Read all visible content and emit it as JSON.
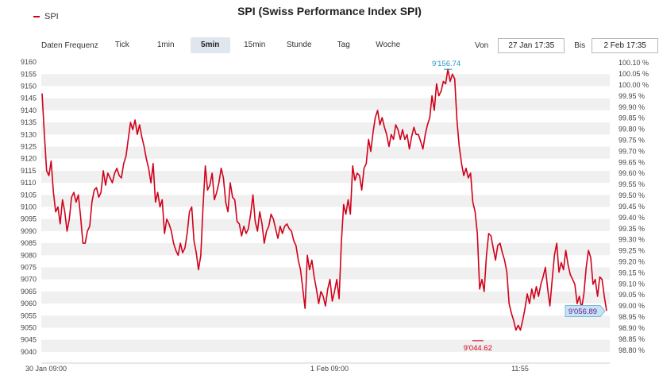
{
  "chart_data": {
    "type": "line",
    "title": "SPI (Swiss Performance Index SPI)",
    "series": [
      {
        "name": "SPI",
        "color": "#d0021b"
      }
    ],
    "x_ticks": [
      "30 Jan 09:00",
      "1 Feb 09:00",
      "11:55"
    ],
    "ylim": [
      9037,
      9162
    ],
    "y_ticks": [
      9040,
      9045,
      9050,
      9055,
      9060,
      9065,
      9070,
      9075,
      9080,
      9085,
      9090,
      9095,
      9100,
      9105,
      9110,
      9115,
      9120,
      9125,
      9130,
      9135,
      9140,
      9145,
      9150,
      9155,
      9160
    ],
    "y2_ticks": [
      "98.80 %",
      "98.85 %",
      "98.90 %",
      "98.95 %",
      "99.00 %",
      "99.05 %",
      "99.10 %",
      "99.15 %",
      "99.20 %",
      "99.25 %",
      "99.30 %",
      "99.35 %",
      "99.40 %",
      "99.45 %",
      "99.50 %",
      "99.55 %",
      "99.60 %",
      "99.65 %",
      "99.70 %",
      "99.75 %",
      "99.80 %",
      "99.85 %",
      "99.90 %",
      "99.95 %",
      "100.00 %",
      "100.05 %",
      "100.10 %"
    ],
    "y2_values": [
      98.8,
      98.85,
      98.9,
      98.95,
      99.0,
      99.05,
      99.1,
      99.15,
      99.2,
      99.25,
      99.3,
      99.35,
      99.4,
      99.45,
      99.5,
      99.55,
      99.6,
      99.65,
      99.7,
      99.75,
      99.8,
      99.85,
      99.9,
      99.95,
      100.0,
      100.05,
      100.1
    ],
    "y2_base": 9150.5,
    "grid": "horizontal-bands",
    "annotations": {
      "max_label": "9'156.74",
      "min_label": "9'044.62",
      "last_label": "9'056.89"
    },
    "values": [
      9147,
      9130,
      9115,
      9113,
      9119,
      9106,
      9098,
      9100,
      9093,
      9103,
      9098,
      9090,
      9095,
      9104,
      9106,
      9102,
      9105,
      9096,
      9085,
      9085,
      9090,
      9092,
      9102,
      9107,
      9108,
      9104,
      9106,
      9115,
      9109,
      9114,
      9112,
      9110,
      9114,
      9116,
      9113,
      9112,
      9118,
      9121,
      9128,
      9135,
      9132,
      9136,
      9130,
      9134,
      9129,
      9125,
      9120,
      9116,
      9110,
      9118,
      9102,
      9106,
      9100,
      9103,
      9089,
      9095,
      9093,
      9090,
      9085,
      9082,
      9080,
      9085,
      9081,
      9083,
      9089,
      9098,
      9100,
      9086,
      9081,
      9074,
      9080,
      9100,
      9117,
      9107,
      9109,
      9114,
      9103,
      9106,
      9110,
      9116,
      9112,
      9102,
      9098,
      9110,
      9104,
      9103,
      9094,
      9093,
      9088,
      9092,
      9089,
      9091,
      9097,
      9105,
      9094,
      9090,
      9098,
      9093,
      9085,
      9090,
      9092,
      9097,
      9095,
      9091,
      9087,
      9092,
      9089,
      9092,
      9093,
      9091,
      9090,
      9086,
      9084,
      9078,
      9074,
      9066,
      9058,
      9080,
      9074,
      9078,
      9071,
      9066,
      9060,
      9065,
      9063,
      9059,
      9066,
      9070,
      9061,
      9065,
      9070,
      9062,
      9085,
      9101,
      9097,
      9103,
      9097,
      9117,
      9111,
      9114,
      9113,
      9107,
      9116,
      9118,
      9128,
      9123,
      9131,
      9137,
      9140,
      9134,
      9137,
      9133,
      9130,
      9125,
      9130,
      9128,
      9134,
      9132,
      9128,
      9132,
      9128,
      9130,
      9124,
      9129,
      9133,
      9130,
      9130,
      9127,
      9124,
      9130,
      9134,
      9137,
      9146,
      9140,
      9151,
      9146,
      9148,
      9152,
      9151,
      9157,
      9152,
      9155,
      9153,
      9136,
      9125,
      9118,
      9113,
      9116,
      9112,
      9114,
      9102,
      9098,
      9089,
      9066,
      9070,
      9065,
      9080,
      9089,
      9088,
      9083,
      9078,
      9084,
      9085,
      9081,
      9078,
      9073,
      9060,
      9056,
      9053,
      9049,
      9051,
      9049,
      9053,
      9058,
      9064,
      9060,
      9066,
      9062,
      9067,
      9063,
      9068,
      9071,
      9075,
      9066,
      9059,
      9070,
      9080,
      9085,
      9073,
      9077,
      9074,
      9082,
      9076,
      9072,
      9070,
      9068,
      9060,
      9063,
      9058,
      9064,
      9075,
      9082,
      9079,
      9068,
      9070,
      9063,
      9071,
      9070,
      9063,
      9057
    ]
  },
  "toolbar": {
    "label": "Daten Frequenz",
    "buttons": [
      "Tick",
      "1min",
      "5min",
      "15min",
      "Stunde",
      "Tag",
      "Woche"
    ],
    "active": "5min",
    "from_label": "Von",
    "from_value": "27 Jan 17:35",
    "to_label": "Bis",
    "to_value": "2 Feb 17:35"
  }
}
